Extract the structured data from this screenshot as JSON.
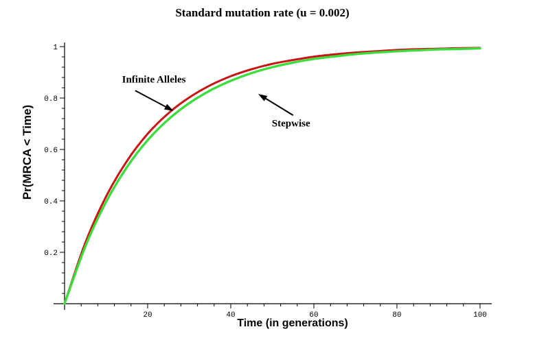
{
  "background": "#ffffff",
  "chart_data": {
    "type": "line",
    "title": "Standard mutation rate (u = 0.002)",
    "xlabel": "Time (in generations)",
    "ylabel": "Pr(MRCA < Time)",
    "xlim": [
      0,
      100
    ],
    "ylim": [
      0,
      1
    ],
    "grid": false,
    "legend_position": "none (inline arrow annotations)",
    "axis_color": "#000000",
    "x": [
      0,
      5,
      10,
      15,
      20,
      25,
      30,
      35,
      40,
      45,
      50,
      55,
      60,
      65,
      70,
      75,
      80,
      85,
      90,
      95,
      100
    ],
    "series": [
      {
        "name": "Infinite Alleles",
        "color": "#c81414",
        "values": [
          0,
          0.237,
          0.417,
          0.555,
          0.661,
          0.741,
          0.802,
          0.849,
          0.885,
          0.912,
          0.933,
          0.948,
          0.961,
          0.97,
          0.977,
          0.982,
          0.987,
          0.99,
          0.992,
          0.994,
          0.995
        ]
      },
      {
        "name": "Stepwise",
        "color": "#3cdc3c",
        "values": [
          0,
          0.223,
          0.396,
          0.531,
          0.636,
          0.717,
          0.78,
          0.829,
          0.867,
          0.897,
          0.92,
          0.938,
          0.952,
          0.962,
          0.971,
          0.977,
          0.982,
          0.986,
          0.989,
          0.991,
          0.993
        ]
      }
    ],
    "x_ticks": [
      {
        "value": 20,
        "label": "20"
      },
      {
        "value": 40,
        "label": "40"
      },
      {
        "value": 60,
        "label": "60"
      },
      {
        "value": 80,
        "label": "80"
      },
      {
        "value": 100,
        "label": "100"
      }
    ],
    "y_ticks": [
      {
        "value": 0.2,
        "label": "0.2"
      },
      {
        "value": 0.4,
        "label": "0.4"
      },
      {
        "value": 0.6,
        "label": "0.6"
      },
      {
        "value": 0.8,
        "label": "0.8"
      },
      {
        "value": 1,
        "label": "1"
      }
    ],
    "minor_tick_step_x": 4,
    "minor_tick_step_y": 0.04,
    "annotations": [
      {
        "text": "Infinite Alleles",
        "label_x": 21.5,
        "label_y": 0.87,
        "arrow_from_x": 17.0,
        "arrow_from_y": 0.829,
        "arrow_to_x": 26.2,
        "arrow_to_y": 0.75
      },
      {
        "text": "Stepwise",
        "label_x": 54.5,
        "label_y": 0.7,
        "arrow_from_x": 55.0,
        "arrow_from_y": 0.733,
        "arrow_to_x": 46.6,
        "arrow_to_y": 0.816
      }
    ]
  }
}
